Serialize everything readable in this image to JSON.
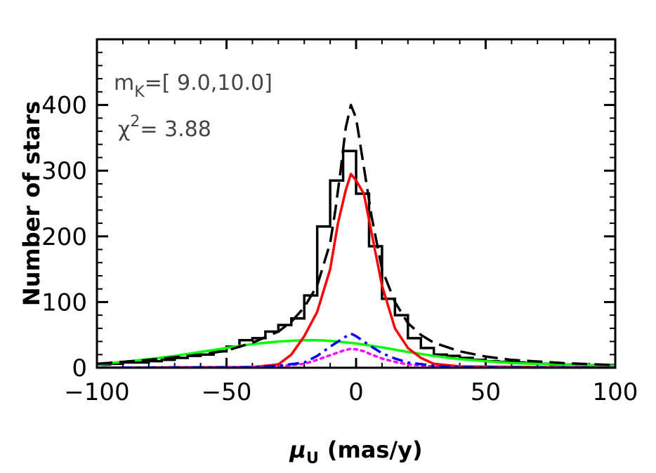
{
  "chart_data": {
    "type": "line",
    "title": "",
    "xlabel_symbol": "μ",
    "xlabel_sub": "U",
    "xlabel_rest": "(mas/y)",
    "ylabel": "Number of stars",
    "xlim": [
      -100,
      100
    ],
    "ylim": [
      0,
      500
    ],
    "xticks": [
      -100,
      -50,
      0,
      50,
      100
    ],
    "yticks": [
      0,
      100,
      200,
      300,
      400
    ],
    "xtick_labels": [
      "−100",
      "−50",
      "0",
      "50",
      "100"
    ],
    "ytick_labels": [
      "0",
      "100",
      "200",
      "300",
      "400"
    ],
    "grid": false,
    "annotations": {
      "mk_prefix": "m",
      "mk_sub": "K",
      "mk_rest": "=[  9.0,10.0]",
      "chi_prefix": "χ",
      "chi_sup": "2",
      "chi_rest": "=  3.88"
    },
    "histogram": {
      "color": "#000000",
      "edges": [
        -100,
        -95,
        -90,
        -85,
        -80,
        -75,
        -70,
        -65,
        -60,
        -55,
        -50,
        -45,
        -40,
        -35,
        -30,
        -25,
        -20,
        -15,
        -10,
        -5,
        0,
        5,
        10,
        15,
        20,
        25,
        30,
        35,
        40,
        45,
        50,
        55,
        60,
        65,
        70,
        75,
        80,
        85,
        90,
        95,
        100
      ],
      "values": [
        5,
        6,
        8,
        8,
        10,
        12,
        15,
        18,
        20,
        25,
        32,
        42,
        45,
        55,
        65,
        75,
        110,
        215,
        285,
        330,
        265,
        185,
        105,
        80,
        45,
        30,
        20,
        18,
        15,
        12,
        10,
        9,
        8,
        7,
        6,
        5,
        5,
        4,
        4,
        4
      ]
    },
    "series": [
      {
        "style": "dashed",
        "color": "#000000",
        "x": [
          -100,
          -80,
          -60,
          -50,
          -40,
          -30,
          -25,
          -20,
          -15,
          -10,
          -8,
          -6,
          -4,
          -2,
          0,
          2,
          4,
          6,
          8,
          10,
          15,
          20,
          25,
          30,
          40,
          50,
          60,
          80,
          100
        ],
        "y": [
          6,
          12,
          20,
          26,
          38,
          55,
          70,
          92,
          125,
          190,
          240,
          300,
          365,
          400,
          380,
          330,
          280,
          230,
          190,
          150,
          100,
          68,
          50,
          38,
          25,
          17,
          12,
          7,
          4
        ]
      },
      {
        "style": "solid",
        "color": "#ff0000",
        "x": [
          -100,
          -40,
          -30,
          -25,
          -20,
          -15,
          -10,
          -7,
          -4,
          -2,
          0,
          3,
          6,
          10,
          15,
          20,
          25,
          30,
          40,
          100
        ],
        "y": [
          0,
          1,
          5,
          20,
          48,
          85,
          150,
          220,
          270,
          295,
          285,
          265,
          205,
          125,
          60,
          30,
          15,
          6,
          2,
          0
        ]
      },
      {
        "style": "solid",
        "color": "#00ff00",
        "x": [
          -100,
          -90,
          -80,
          -70,
          -60,
          -50,
          -40,
          -30,
          -20,
          -15,
          -10,
          0,
          10,
          20,
          30,
          40,
          50,
          60,
          70,
          80,
          90,
          100
        ],
        "y": [
          5,
          9,
          13,
          18,
          24,
          30,
          36,
          40,
          42,
          42,
          41,
          37,
          31,
          24,
          18,
          13,
          10,
          7,
          6,
          5,
          4,
          3
        ]
      },
      {
        "style": "dashdot",
        "color": "#0000ff",
        "x": [
          -100,
          -40,
          -30,
          -20,
          -15,
          -10,
          -5,
          -2,
          0,
          3,
          6,
          10,
          15,
          20,
          30,
          40,
          100
        ],
        "y": [
          0,
          1,
          3,
          8,
          18,
          32,
          45,
          52,
          48,
          40,
          32,
          22,
          14,
          8,
          3,
          1,
          0
        ]
      },
      {
        "style": "dotted",
        "color": "#ff00ff",
        "x": [
          -100,
          -40,
          -30,
          -20,
          -15,
          -10,
          -5,
          -2,
          0,
          3,
          6,
          10,
          15,
          20,
          30,
          40,
          100
        ],
        "y": [
          0,
          1,
          2,
          6,
          12,
          19,
          26,
          29,
          28,
          25,
          20,
          14,
          9,
          5,
          2,
          1,
          0
        ]
      }
    ]
  }
}
